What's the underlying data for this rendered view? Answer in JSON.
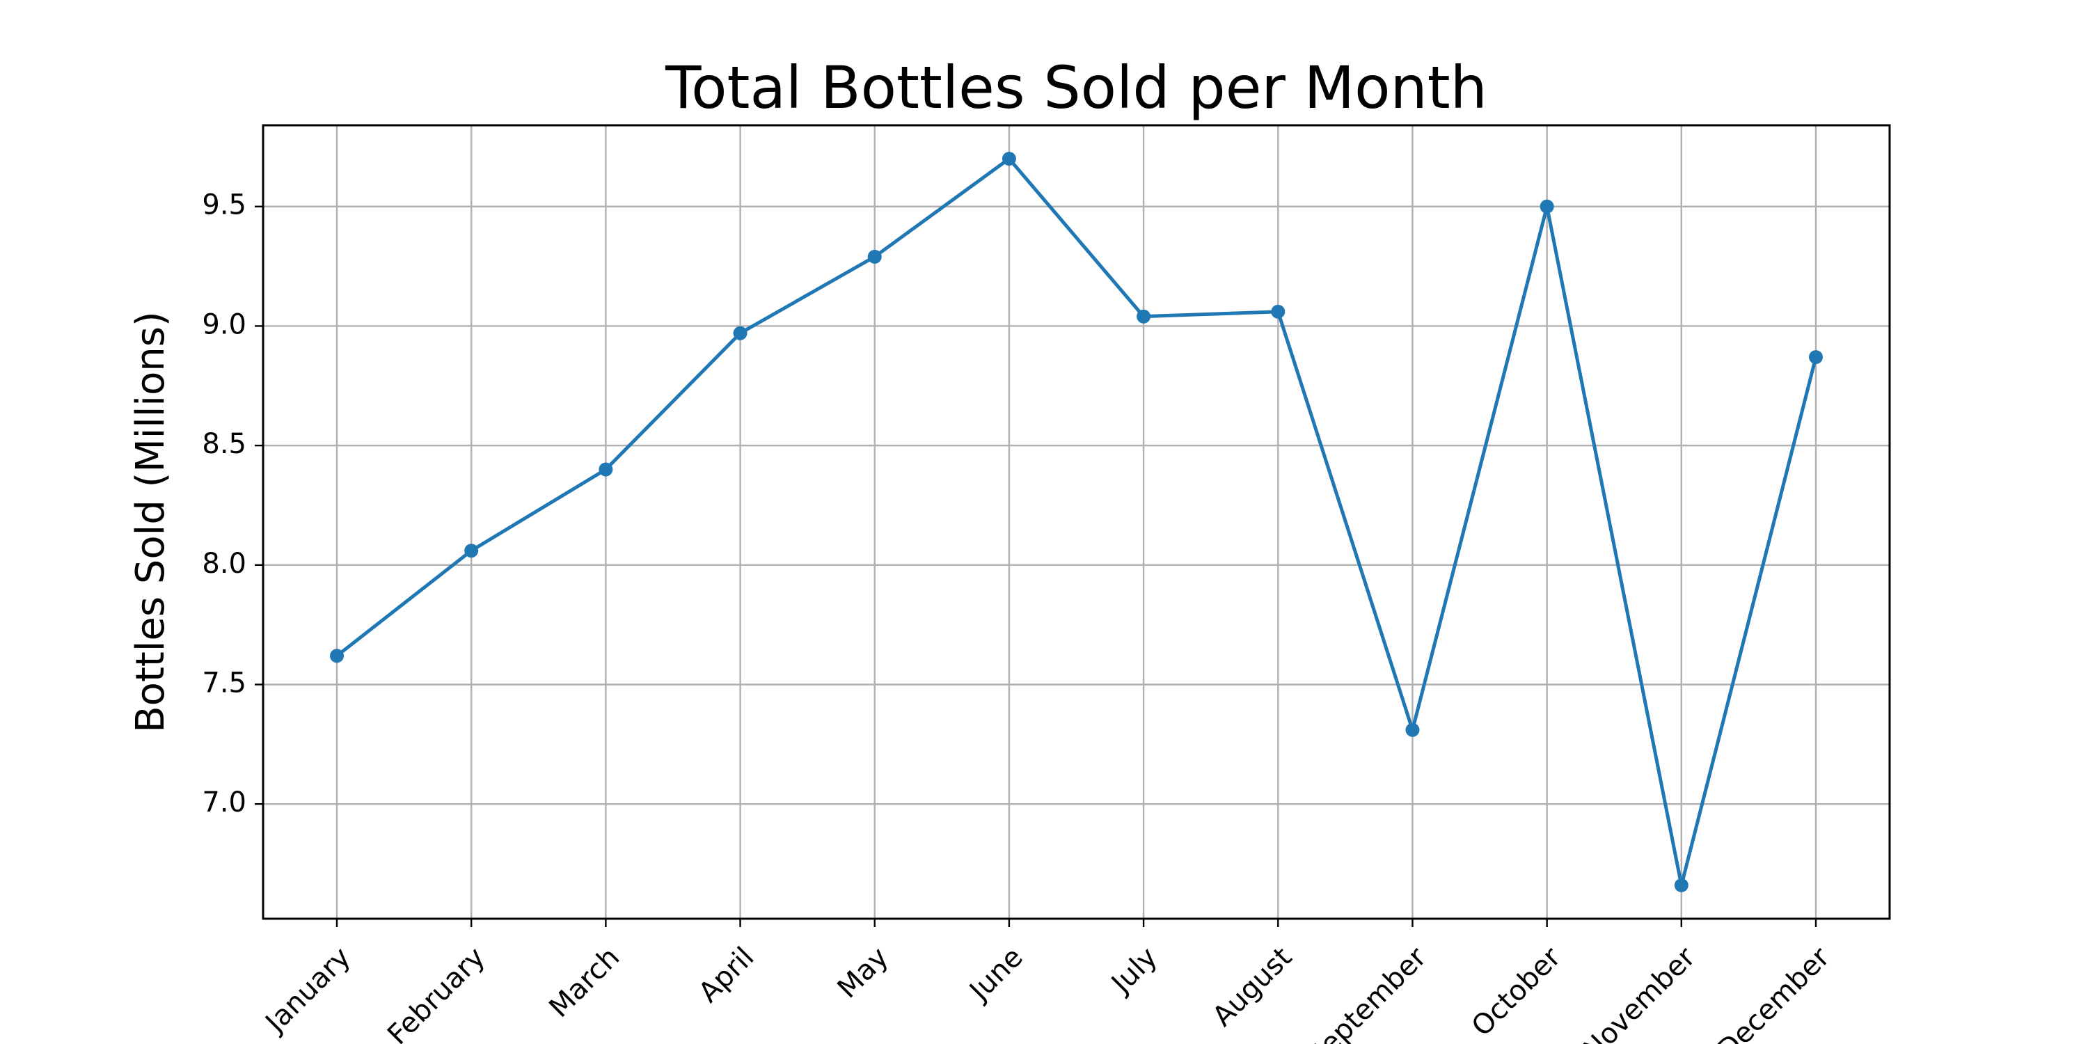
{
  "chart_data": {
    "type": "line",
    "title": "Total Bottles Sold per Month",
    "xlabel": "",
    "ylabel": "Bottles Sold (Millions)",
    "categories": [
      "January",
      "February",
      "March",
      "April",
      "May",
      "June",
      "July",
      "August",
      "September",
      "October",
      "November",
      "December"
    ],
    "series": [
      {
        "values": [
          7.62,
          8.06,
          8.4,
          8.97,
          9.29,
          9.7,
          9.04,
          9.06,
          7.31,
          9.5,
          6.66,
          8.87
        ],
        "color": "#1f77b4",
        "marker": "circle"
      }
    ],
    "ylim": [
      6.52,
      9.84
    ],
    "yticks": [
      7.0,
      7.5,
      8.0,
      8.5,
      9.0,
      9.5
    ],
    "ytick_labels": [
      "7.0",
      "7.5",
      "8.0",
      "8.5",
      "9.0",
      "9.5"
    ],
    "grid": true,
    "xtick_rotation": 45
  }
}
